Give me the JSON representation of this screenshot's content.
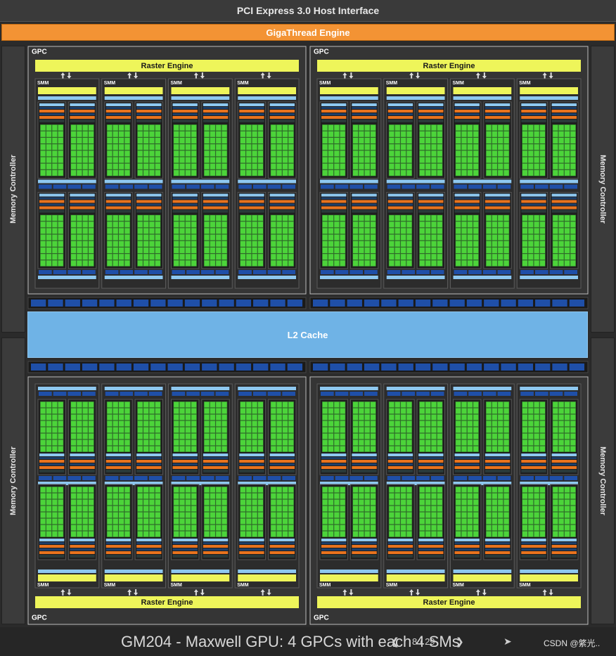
{
  "header": {
    "pcie_label": "PCI Express 3.0 Host Interface",
    "gigathread_label": "GigaThread Engine"
  },
  "memory_controller_label": "Memory Controller",
  "l2_label": "L2 Cache",
  "gpc": {
    "label": "GPC",
    "raster_label": "Raster Engine",
    "smm_label": "SMM",
    "count": 4,
    "smms_per_gpc": 4
  },
  "caption": {
    "title": "GM204 - Maxwell GPU: 4 GPCs with each 4 SMs",
    "prev_icon": "chevron-left-icon",
    "next_icon": "chevron-right-icon",
    "page_text": "8 / 29",
    "share_icon": "share-icon",
    "watermark": "CSDN @綮光.."
  },
  "colors": {
    "pcie_bg": "#3a3a3a",
    "gigathread": "#f39334",
    "l2": "#6fb3e6",
    "raster": "#eef55a",
    "core_green": "#4cd43a",
    "orange": "#e8731e",
    "light_blue": "#8ec8f0",
    "dark_blue": "#1f4fa8"
  }
}
